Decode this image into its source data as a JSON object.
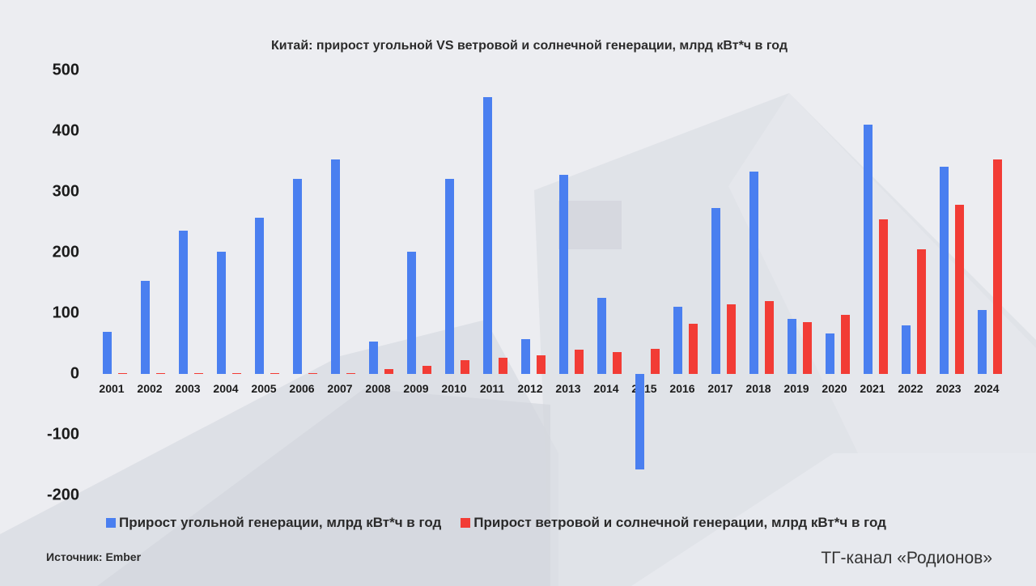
{
  "chart_data": {
    "type": "bar",
    "title": "Китай: прирост угольной VS  ветровой и солнечной генерации, млрд кВт*ч в год",
    "categories": [
      "2001",
      "2002",
      "2003",
      "2004",
      "2005",
      "2006",
      "2007",
      "2008",
      "2009",
      "2010",
      "2011",
      "2012",
      "2013",
      "2014",
      "2015",
      "2016",
      "2017",
      "2018",
      "2019",
      "2020",
      "2021",
      "2022",
      "2023",
      "2024"
    ],
    "series": [
      {
        "name": "Прирост угольной генерации, млрд кВт*ч в год",
        "color": "#4a7ff0",
        "values": [
          69,
          153,
          236,
          201,
          257,
          321,
          353,
          53,
          201,
          321,
          456,
          57,
          328,
          125,
          -157,
          111,
          273,
          333,
          91,
          67,
          411,
          80,
          341,
          106
        ]
      },
      {
        "name": "Прирост ветровой и солнечной генерации, млрд кВт*ч в год",
        "color": "#f23c35",
        "values": [
          1,
          1,
          1,
          1,
          1,
          1,
          1,
          8,
          14,
          23,
          27,
          31,
          40,
          36,
          42,
          83,
          115,
          120,
          86,
          98,
          255,
          206,
          279,
          354
        ]
      }
    ],
    "yticks": [
      "500",
      "400",
      "300",
      "200",
      "100",
      "0",
      "-100",
      "-200"
    ],
    "ylim": [
      -200,
      500
    ],
    "xlabel": "",
    "ylabel": "",
    "legend": "bottom"
  },
  "footer": {
    "source": "Источник: Ember",
    "channel": "ТГ-канал «Родионов»"
  }
}
